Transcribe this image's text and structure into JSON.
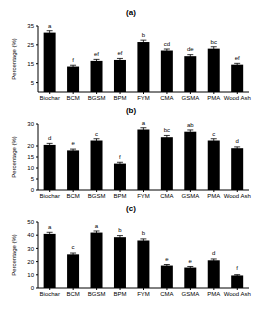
{
  "chart_data": [
    {
      "type": "bar",
      "title": "(a)",
      "y_label": "Percentage (%)",
      "color": "#000000",
      "categories": [
        "Biochar",
        "BCM",
        "BGSM",
        "BPM",
        "FYM",
        "CMA",
        "GSMA",
        "PMA",
        "Wood Ash"
      ],
      "values": [
        31.5,
        13.5,
        16.5,
        17,
        26.5,
        22,
        19,
        23,
        14.5
      ],
      "errors": [
        1,
        0.7,
        0.8,
        0.8,
        1,
        0.8,
        0.8,
        1,
        0.7
      ],
      "annotations": [
        "a",
        "f",
        "ef",
        "ef",
        "b",
        "cd",
        "de",
        "bc",
        "ef"
      ],
      "ylim": [
        0,
        35
      ],
      "yticks": [
        0,
        5,
        10,
        15,
        20,
        25,
        30,
        35
      ],
      "grid": false
    },
    {
      "type": "bar",
      "title": "(b)",
      "y_label": "Percentage (%)",
      "color": "#000000",
      "categories": [
        "Biochar",
        "BCM",
        "BGSM",
        "BPM",
        "FYM",
        "CMA",
        "GSMA",
        "PMA",
        "Wood Ash"
      ],
      "values": [
        20.5,
        18,
        22.5,
        12,
        27.5,
        24,
        26.5,
        22.5,
        19
      ],
      "errors": [
        0.7,
        0.6,
        0.8,
        0.6,
        0.8,
        0.8,
        0.8,
        0.8,
        0.6
      ],
      "annotations": [
        "d",
        "e",
        "c",
        "f",
        "a",
        "bc",
        "ab",
        "c",
        "d"
      ],
      "ylim": [
        0,
        30
      ],
      "yticks": [
        0,
        5,
        10,
        15,
        20,
        25,
        30
      ],
      "grid": false
    },
    {
      "type": "bar",
      "title": "(c)",
      "y_label": "Percentage (%)",
      "color": "#000000",
      "categories": [
        "Biochar",
        "BCM",
        "BGSM",
        "BPM",
        "FYM",
        "CMA",
        "GSMA",
        "PMA",
        "Wood Ash"
      ],
      "values": [
        41,
        25.5,
        42,
        38.5,
        36,
        17,
        15.5,
        21,
        9.5
      ],
      "errors": [
        1.2,
        1,
        1.2,
        1.2,
        1.2,
        0.8,
        0.8,
        1,
        0.6
      ],
      "annotations": [
        "a",
        "c",
        "a",
        "b",
        "b",
        "e",
        "e",
        "d",
        "f"
      ],
      "ylim": [
        0,
        50
      ],
      "yticks": [
        0,
        10,
        20,
        30,
        40,
        50
      ],
      "grid": false
    }
  ]
}
